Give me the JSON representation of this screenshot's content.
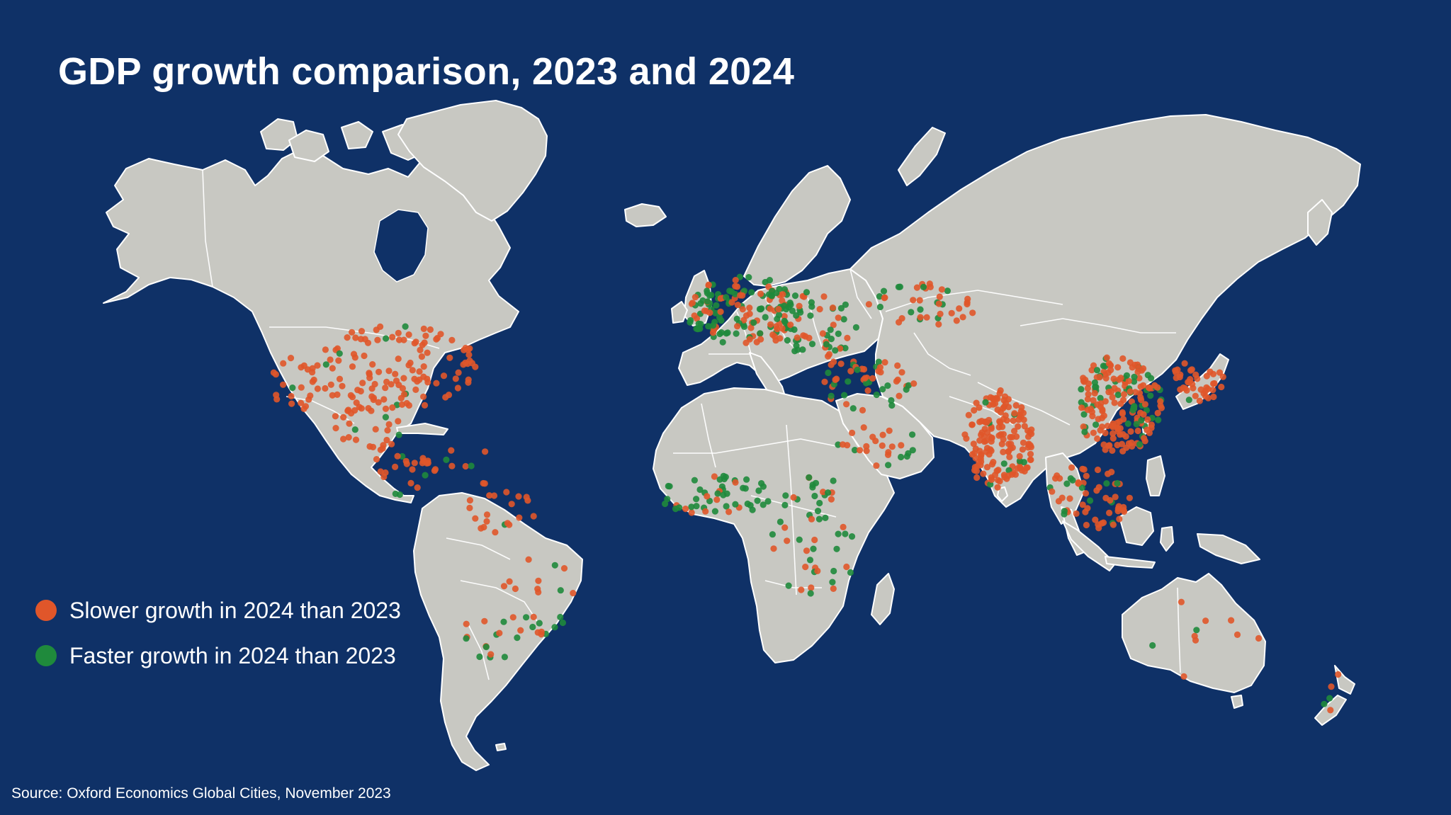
{
  "title": "GDP growth comparison, 2023 and 2024",
  "legend": [
    {
      "label": "Slower growth in 2024 than 2023",
      "color": "#e0562a"
    },
    {
      "label": "Faster growth in 2024 than 2023",
      "color": "#1f8a3c"
    }
  ],
  "source": "Source: Oxford Economics Global Cities, November 2023",
  "colors": {
    "background": "#0f3167",
    "land": "#c8c8c2",
    "slower": "#e0562a",
    "faster": "#1f8a3c"
  }
}
